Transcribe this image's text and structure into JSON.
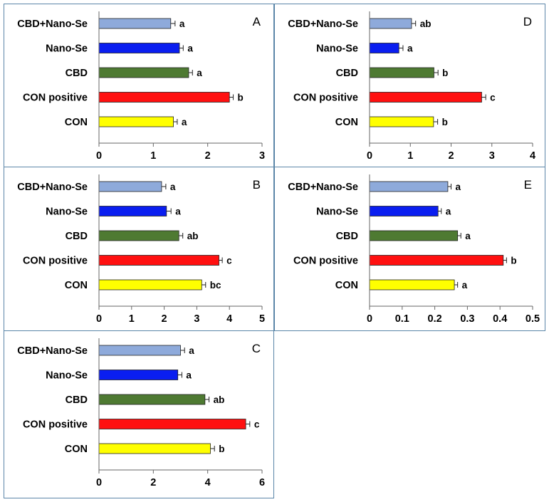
{
  "figure": {
    "colors": {
      "border": "#5b86a8",
      "series": [
        "#8eaadb",
        "#0a1ef0",
        "#4e7a32",
        "#ff1010",
        "#ffff00"
      ]
    }
  },
  "chart_data": [
    {
      "type": "bar",
      "orientation": "horizontal",
      "panel": "A",
      "categories": [
        "CBD+Nano-Se",
        "Nano-Se",
        "CBD",
        "CON positive",
        "CON"
      ],
      "values": [
        1.32,
        1.48,
        1.65,
        2.4,
        1.37
      ],
      "errors": [
        0.08,
        0.07,
        0.07,
        0.07,
        0.07
      ],
      "significance": [
        "a",
        "a",
        "a",
        "b",
        "a"
      ],
      "xlim": [
        0,
        3
      ],
      "xticks": [
        0,
        1,
        2,
        3
      ],
      "tick_labels": [
        "0",
        "1",
        "2",
        "3"
      ]
    },
    {
      "type": "bar",
      "orientation": "horizontal",
      "panel": "B",
      "categories": [
        "CBD+Nano-Se",
        "Nano-Se",
        "CBD",
        "CON positive",
        "CON"
      ],
      "values": [
        1.92,
        2.07,
        2.45,
        3.68,
        3.15
      ],
      "errors": [
        0.13,
        0.14,
        0.12,
        0.1,
        0.12
      ],
      "significance": [
        "a",
        "a",
        "ab",
        "c",
        "bc"
      ],
      "xlim": [
        0,
        5
      ],
      "xticks": [
        0,
        1,
        2,
        3,
        4,
        5
      ],
      "tick_labels": [
        "0",
        "1",
        "2",
        "3",
        "4",
        "5"
      ]
    },
    {
      "type": "bar",
      "orientation": "horizontal",
      "panel": "C",
      "categories": [
        "CBD+Nano-Se",
        "Nano-Se",
        "CBD",
        "CON positive",
        "CON"
      ],
      "values": [
        3.0,
        2.9,
        3.9,
        5.4,
        4.1
      ],
      "errors": [
        0.15,
        0.15,
        0.15,
        0.15,
        0.15
      ],
      "significance": [
        "a",
        "a",
        "ab",
        "c",
        "b"
      ],
      "xlim": [
        0,
        6
      ],
      "xticks": [
        0,
        2,
        4,
        6
      ],
      "tick_labels": [
        "0",
        "2",
        "4",
        "6"
      ]
    },
    {
      "type": "bar",
      "orientation": "horizontal",
      "panel": "D",
      "categories": [
        "CBD+Nano-Se",
        "Nano-Se",
        "CBD",
        "CON positive",
        "CON"
      ],
      "values": [
        1.03,
        0.72,
        1.58,
        2.75,
        1.57
      ],
      "errors": [
        0.1,
        0.1,
        0.1,
        0.1,
        0.1
      ],
      "significance": [
        "ab",
        "a",
        "b",
        "c",
        "b"
      ],
      "xlim": [
        0,
        4
      ],
      "xticks": [
        0,
        1,
        2,
        3,
        4
      ],
      "tick_labels": [
        "0",
        "1",
        "2",
        "3",
        "4"
      ]
    },
    {
      "type": "bar",
      "orientation": "horizontal",
      "panel": "E",
      "categories": [
        "CBD+Nano-Se",
        "Nano-Se",
        "CBD",
        "CON positive",
        "CON"
      ],
      "values": [
        0.24,
        0.21,
        0.27,
        0.41,
        0.26
      ],
      "errors": [
        0.01,
        0.01,
        0.01,
        0.01,
        0.01
      ],
      "significance": [
        "a",
        "a",
        "a",
        "b",
        "a"
      ],
      "xlim": [
        0,
        0.5
      ],
      "xticks": [
        0,
        0.1,
        0.2,
        0.3,
        0.4,
        0.5
      ],
      "tick_labels": [
        "0",
        "0.1",
        "0.2",
        "0.3",
        "0.4",
        "0.5"
      ]
    }
  ]
}
